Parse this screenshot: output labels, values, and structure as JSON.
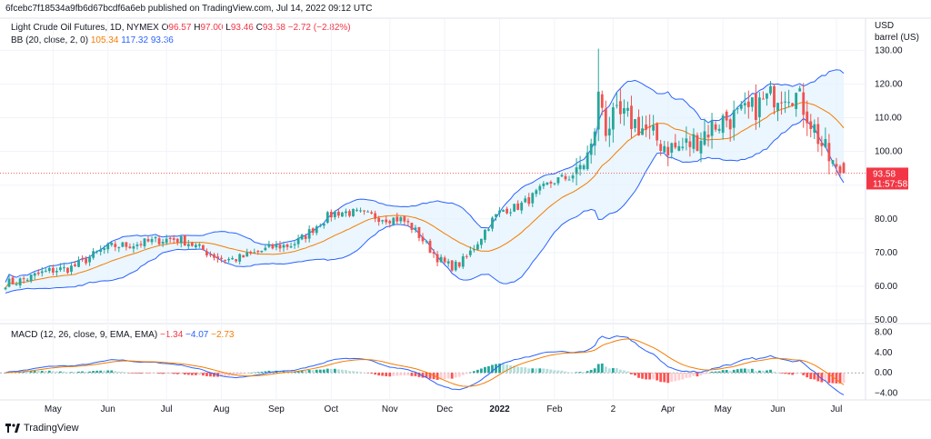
{
  "header": {
    "publish_line": "6fcebc7f18534a9fb6d67bcdf6a6eb published on TradingView.com, Jul 14, 2022 09:12 UTC"
  },
  "legend": {
    "title": "Light Crude Oil Futures, 1D, NYMEX",
    "o_label": "O",
    "o_value": "96.57",
    "h_label": "H",
    "h_value": "97.00",
    "l_label": "L",
    "l_value": "93.46",
    "c_label": "C",
    "c_value": "93.58",
    "change": "−2.72 (−2.82%)",
    "bb_label": "BB (20, close, 2, 0)",
    "bb_basis": "105.34",
    "bb_upper": "117.32",
    "bb_lower": "93.36",
    "macd_label": "MACD (12, 26, close, 9, EMA, EMA)",
    "macd_hist": "−1.34",
    "macd_line": "−4.07",
    "macd_signal": "−2.73"
  },
  "price_axis": {
    "unit_line1": "USD",
    "unit_line2": "barrel (US)",
    "ticks": [
      "130.00",
      "120.00",
      "110.00",
      "100.00",
      "80.00",
      "70.00",
      "60.00",
      "50.00"
    ],
    "last_price": "93.58",
    "countdown": "11:57:58"
  },
  "macd_axis": {
    "ticks": [
      "8.00",
      "4.00",
      "0.00",
      "−4.00"
    ]
  },
  "time_axis": {
    "ticks": [
      "May",
      "Jun",
      "Jul",
      "Aug",
      "Sep",
      "Oct",
      "Nov",
      "Dec",
      "2022",
      "Feb",
      "2",
      "Apr",
      "May",
      "Jun",
      "Jul"
    ]
  },
  "footer": {
    "brand": "TradingView"
  },
  "colors": {
    "up": "#26a69a",
    "down": "#ef5350",
    "bb_basis": "#f57c00",
    "bb_band": "#2962ff",
    "bb_fill": "#e3f2fd",
    "macd_line": "#2962ff",
    "signal_line": "#f57c00"
  },
  "chart_data": {
    "type": "candlestick",
    "symbol": "Light Crude Oil Futures",
    "interval": "1D",
    "ylim": [
      50,
      132
    ],
    "macd_ylim": [
      -5,
      9
    ],
    "price_anchors": [
      {
        "month": "Apr 2021",
        "close": 61
      },
      {
        "month": "May 2021",
        "close": 65
      },
      {
        "month": "Jun 2021",
        "close": 72
      },
      {
        "month": "Jul 2021",
        "close": 74
      },
      {
        "month": "Aug 2021",
        "close": 68
      },
      {
        "month": "Sep 2021",
        "close": 72
      },
      {
        "month": "Oct 2021",
        "close": 82
      },
      {
        "month": "Nov 2021",
        "close": 80
      },
      {
        "month": "Dec 2021",
        "close": 66
      },
      {
        "month": "Jan 2022",
        "close": 83
      },
      {
        "month": "Feb 2022",
        "close": 92
      },
      {
        "month": "Mar 2022",
        "close": 110
      },
      {
        "month": "Apr 2022",
        "close": 101
      },
      {
        "month": "May 2022",
        "close": 110
      },
      {
        "month": "Jun 2022",
        "close": 118
      },
      {
        "month": "Jul 2022",
        "close": 93.58
      }
    ]
  }
}
